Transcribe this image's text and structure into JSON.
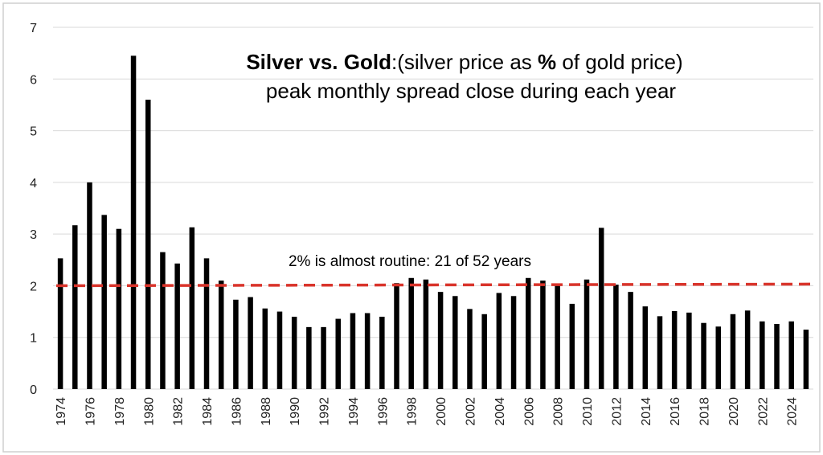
{
  "chart_data": {
    "type": "bar",
    "title_parts": [
      {
        "text": "Silver vs. Gold",
        "bold": true
      },
      {
        "text": ":(silver price as ",
        "bold": false
      },
      {
        "text": "%",
        "bold": true
      },
      {
        "text": " of gold price)",
        "bold": false
      }
    ],
    "subtitle": "peak monthly spread close during each year",
    "annotation": "2% is almost routine: 21 of 52 years",
    "xlabel": "",
    "ylabel": "",
    "ylim": [
      0,
      7
    ],
    "yticks": [
      0,
      1,
      2,
      3,
      4,
      5,
      6,
      7
    ],
    "grid": true,
    "legend": "none",
    "bar_color": "#000000",
    "reference_line": {
      "value": 2.0,
      "color": "#d9342b",
      "style": "dashed"
    },
    "categories": [
      "1974",
      "1975",
      "1976",
      "1977",
      "1978",
      "1979",
      "1980",
      "1981",
      "1982",
      "1983",
      "1984",
      "1985",
      "1986",
      "1987",
      "1988",
      "1989",
      "1990",
      "1991",
      "1992",
      "1993",
      "1994",
      "1995",
      "1996",
      "1997",
      "1998",
      "1999",
      "2000",
      "2001",
      "2002",
      "2003",
      "2004",
      "2005",
      "2006",
      "2007",
      "2008",
      "2009",
      "2010",
      "2011",
      "2012",
      "2013",
      "2014",
      "2015",
      "2016",
      "2017",
      "2018",
      "2019",
      "2020",
      "2021",
      "2022",
      "2023",
      "2024",
      "2025"
    ],
    "x_tick_labels": [
      "1974",
      "1976",
      "1978",
      "1980",
      "1982",
      "1984",
      "1986",
      "1988",
      "1990",
      "1992",
      "1994",
      "1996",
      "1998",
      "2000",
      "2002",
      "2004",
      "2006",
      "2008",
      "2010",
      "2012",
      "2014",
      "2016",
      "2018",
      "2020",
      "2022",
      "2024"
    ],
    "values": [
      2.53,
      3.17,
      4.0,
      3.37,
      3.1,
      6.45,
      5.6,
      2.65,
      2.43,
      3.13,
      2.53,
      2.1,
      1.73,
      1.78,
      1.56,
      1.5,
      1.4,
      1.2,
      1.2,
      1.36,
      1.47,
      1.47,
      1.4,
      2.05,
      2.15,
      2.12,
      1.88,
      1.8,
      1.55,
      1.45,
      1.86,
      1.8,
      2.15,
      2.1,
      2.0,
      1.65,
      2.12,
      3.12,
      2.02,
      1.88,
      1.6,
      1.41,
      1.51,
      1.48,
      1.28,
      1.21,
      1.45,
      1.52,
      1.31,
      1.26,
      1.31,
      1.15
    ]
  }
}
